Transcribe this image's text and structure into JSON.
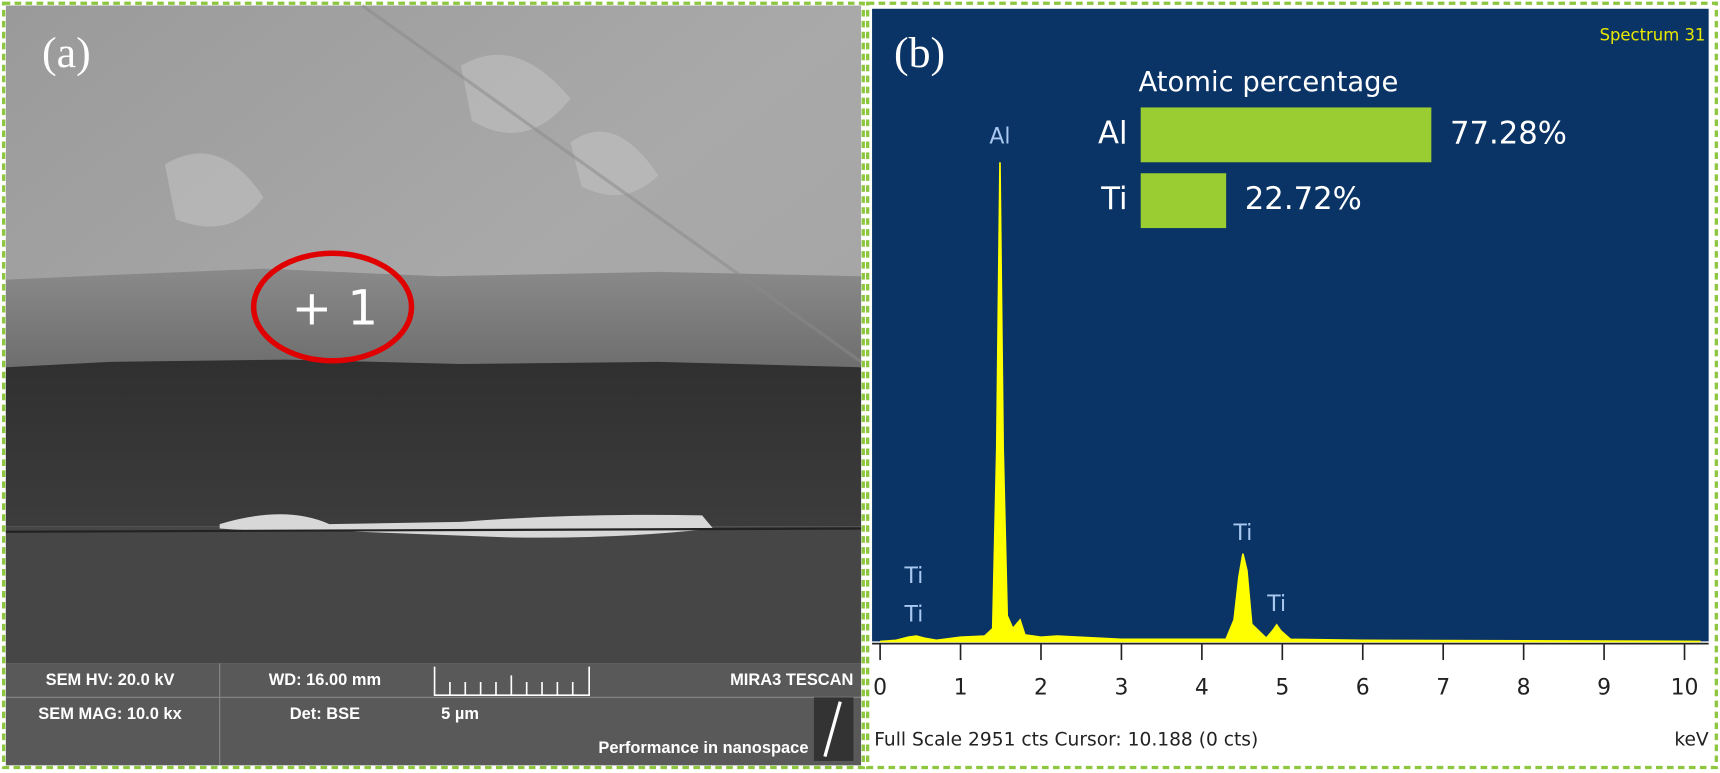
{
  "panel_a": {
    "label": "(a)",
    "point_label": "+ 1",
    "info": {
      "hv": "SEM HV: 20.0 kV",
      "wd": "WD: 16.00 mm",
      "brand": "MIRA3 TESCAN",
      "mag": "SEM MAG: 10.0 kx",
      "det": "Det: BSE",
      "scale": "5 µm",
      "slogan": "Performance in nanospace"
    }
  },
  "panel_b": {
    "label": "(b)",
    "spectrum_name": "Spectrum 31",
    "status": "Full Scale 2951 cts Cursor: 10.188 (0 cts)",
    "unit": "keV"
  },
  "chart_data": [
    {
      "type": "area",
      "x": [
        0,
        0.2,
        0.35,
        0.45,
        0.55,
        0.7,
        1.0,
        1.3,
        1.4,
        1.45,
        1.49,
        1.53,
        1.58,
        1.65,
        1.74,
        1.8,
        2.0,
        2.2,
        3.0,
        4.3,
        4.4,
        4.46,
        4.51,
        4.56,
        4.62,
        4.8,
        4.88,
        4.93,
        4.98,
        5.1,
        6,
        8,
        10.2
      ],
      "values": [
        0,
        5,
        20,
        25,
        15,
        5,
        20,
        25,
        60,
        900,
        2235,
        900,
        120,
        60,
        100,
        30,
        20,
        25,
        10,
        10,
        100,
        300,
        409,
        330,
        80,
        15,
        50,
        77,
        50,
        10,
        5,
        3,
        0
      ],
      "color": "#ffff00",
      "xlim": [
        -0.1,
        10.3
      ],
      "ylim": [
        0,
        2951
      ],
      "xticks": [
        0,
        1,
        2,
        3,
        4,
        5,
        6,
        7,
        8,
        9,
        10
      ],
      "annotations": [
        {
          "text": "Ti",
          "x": 0.42,
          "y": 300
        },
        {
          "text": "Ti",
          "x": 0.42,
          "y": 120
        },
        {
          "text": "Al",
          "x": 1.49,
          "y": 2350
        },
        {
          "text": "Ti",
          "x": 4.51,
          "y": 500
        },
        {
          "text": "Ti",
          "x": 4.93,
          "y": 170
        }
      ]
    },
    {
      "type": "hbar",
      "title": "Atomic percentage",
      "categories": [
        "Al",
        "Ti"
      ],
      "values": [
        77.28,
        22.72
      ],
      "value_labels": [
        "77.28%",
        "22.72%"
      ],
      "color": "#9acd32",
      "xlim": [
        0,
        100
      ]
    }
  ]
}
